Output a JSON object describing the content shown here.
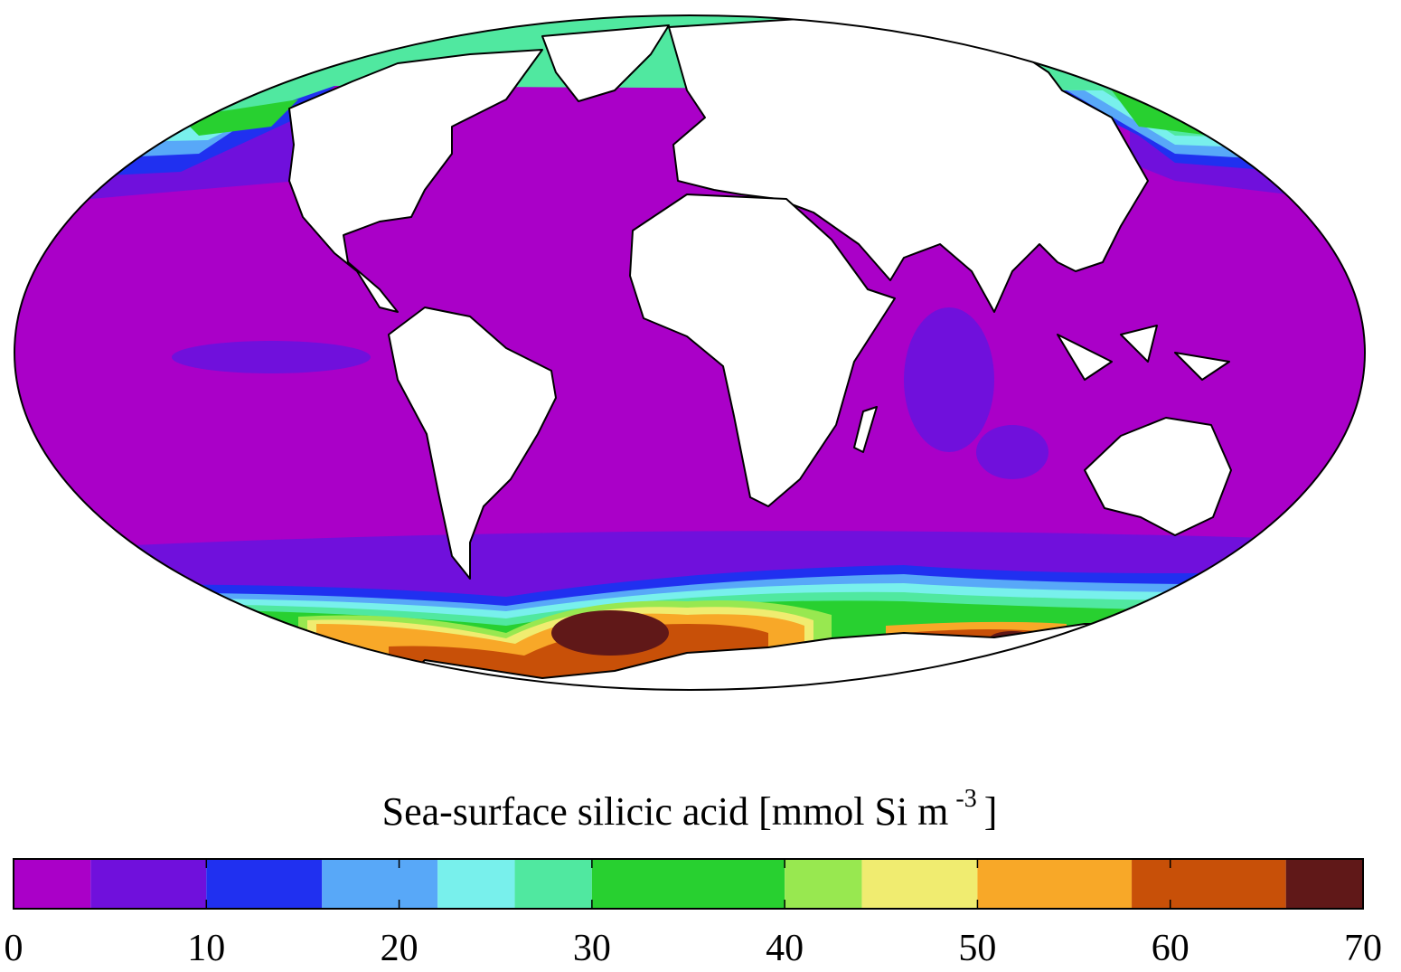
{
  "chart_data": {
    "type": "map",
    "colorbar": {
      "label": "Sea-surface silicic acid [mmol Si m",
      "label_exponent": "-3",
      "label_close": "]",
      "bins": [
        0,
        4,
        10,
        16,
        22,
        26,
        30,
        40,
        44,
        50,
        58,
        66,
        70
      ],
      "colors": [
        "#aa00c8",
        "#7010dc",
        "#2030f0",
        "#58a8f8",
        "#78f0ec",
        "#50e8a0",
        "#28d030",
        "#98e850",
        "#f0ec70",
        "#f8a828",
        "#c85008",
        "#601818"
      ],
      "xlim": [
        0,
        70
      ],
      "xticks": [
        0,
        10,
        20,
        30,
        40,
        50,
        60,
        70
      ]
    }
  }
}
